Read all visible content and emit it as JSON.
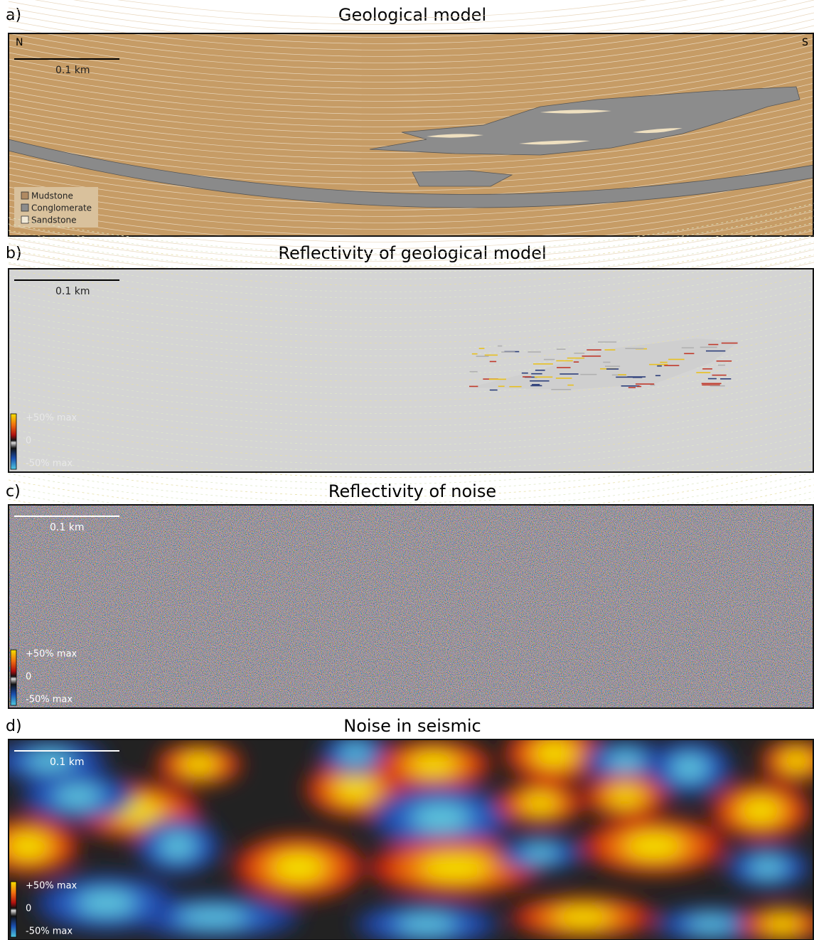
{
  "panels": [
    {
      "label": "a)",
      "title": "Geological model",
      "scale_bar": "0.1 km",
      "north": "N",
      "south": "S",
      "legend": [
        "Mudstone",
        "Conglomerate",
        "Sandstone"
      ]
    },
    {
      "label": "b)",
      "title": "Reflectivity of geological model",
      "scale_bar": "0.1 km",
      "colorbar": [
        "+50% max",
        "0",
        "-50% max"
      ]
    },
    {
      "label": "c)",
      "title": "Reflectivity of noise",
      "scale_bar": "0.1 km",
      "colorbar": [
        "+50% max",
        "0",
        "-50% max"
      ]
    },
    {
      "label": "d)",
      "title": "Noise in seismic",
      "scale_bar": "0.1 km",
      "colorbar": [
        "+50% max",
        "0",
        "-50% max"
      ]
    }
  ]
}
